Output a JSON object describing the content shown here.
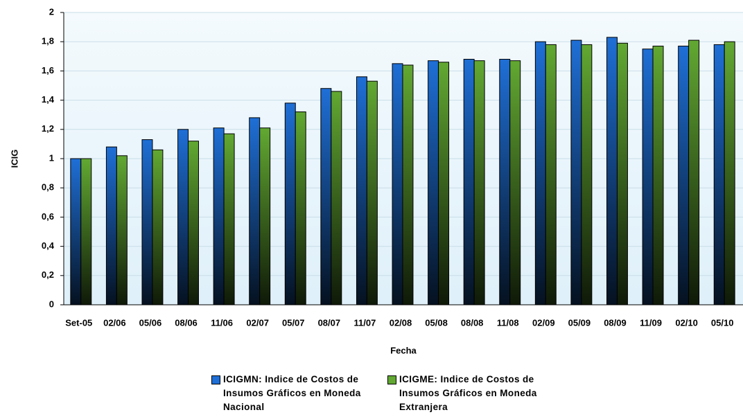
{
  "chart_data": {
    "type": "bar",
    "y_label": "ICIG",
    "x_label": "Fecha",
    "categories": [
      "Set-05",
      "02/06",
      "05/06",
      "08/06",
      "11/06",
      "02/07",
      "05/07",
      "08/07",
      "11/07",
      "02/08",
      "05/08",
      "08/08",
      "11/08",
      "02/09",
      "05/09",
      "08/09",
      "11/09",
      "02/10",
      "05/10"
    ],
    "series": [
      {
        "name": "ICIGMN: Indice de Costos de Insumos Gráficos en Moneda Nacional",
        "color": "#1f6fd6",
        "values": [
          1.0,
          1.08,
          1.13,
          1.2,
          1.21,
          1.28,
          1.38,
          1.48,
          1.56,
          1.65,
          1.67,
          1.68,
          1.68,
          1.8,
          1.81,
          1.83,
          1.75,
          1.77,
          1.78
        ]
      },
      {
        "name": "ICIGME: Indice de Costos de Insumos Gráficos en Moneda Extranjera",
        "color": "#62a832",
        "values": [
          1.0,
          1.02,
          1.06,
          1.12,
          1.17,
          1.21,
          1.32,
          1.46,
          1.53,
          1.64,
          1.66,
          1.67,
          1.67,
          1.78,
          1.78,
          1.79,
          1.77,
          1.81,
          1.8
        ]
      }
    ],
    "ylim": [
      0,
      2
    ],
    "yticks": [
      0,
      {
        "value": 0.2,
        "label": "0,2"
      },
      {
        "value": 0.4,
        "label": "0,4"
      },
      {
        "value": 0.6,
        "label": "0,6"
      },
      {
        "value": 0.8,
        "label": "0,8"
      },
      1,
      {
        "value": 1.2,
        "label": "1,2"
      },
      {
        "value": 1.4,
        "label": "1,4"
      },
      {
        "value": 1.6,
        "label": "1,6"
      },
      {
        "value": 1.8,
        "label": "1,8"
      },
      2
    ],
    "grid": true,
    "legend_position": "bottom"
  }
}
